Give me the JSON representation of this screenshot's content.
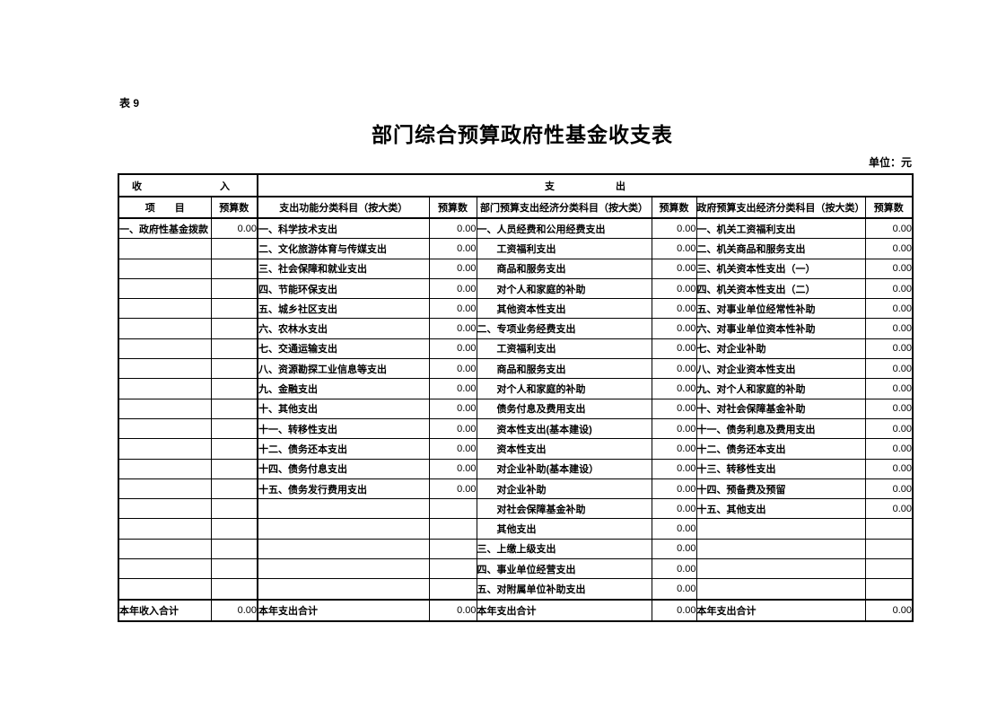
{
  "page": {
    "table_label": "表 9",
    "title": "部门综合预算政府性基金收支表",
    "unit_label": "单位：元"
  },
  "table": {
    "group_headers": {
      "income_left": "收",
      "income_right": "入",
      "expense_left": "支",
      "expense_right": "出"
    },
    "column_headers": [
      "项　　目",
      "预算数",
      "支出功能分类科目（按大类）",
      "预算数",
      "部门预算支出经济分类科目（按大类）",
      "预算数",
      "政府预算支出经济分类科目（按大类）",
      "预算数"
    ],
    "rows": [
      [
        "一、政府性基金拨款",
        "0.00",
        "一、科学技术支出",
        "0.00",
        "一、人员经费和公用经费支出",
        "0.00",
        "一、机关工资福利支出",
        "0.00"
      ],
      [
        "",
        "",
        "二、文化旅游体育与传媒支出",
        "0.00",
        "　　工资福利支出",
        "0.00",
        "二、机关商品和服务支出",
        "0.00"
      ],
      [
        "",
        "",
        "三、社会保障和就业支出",
        "0.00",
        "　　商品和服务支出",
        "0.00",
        "三、机关资本性支出（一）",
        "0.00"
      ],
      [
        "",
        "",
        "四、节能环保支出",
        "0.00",
        "　　对个人和家庭的补助",
        "0.00",
        "四、机关资本性支出（二）",
        "0.00"
      ],
      [
        "",
        "",
        "五、城乡社区支出",
        "0.00",
        "　　其他资本性支出",
        "0.00",
        "五、对事业单位经常性补助",
        "0.00"
      ],
      [
        "",
        "",
        "六、农林水支出",
        "0.00",
        "二、专项业务经费支出",
        "0.00",
        "六、对事业单位资本性补助",
        "0.00"
      ],
      [
        "",
        "",
        "七、交通运输支出",
        "0.00",
        "　　工资福利支出",
        "0.00",
        "七、对企业补助",
        "0.00"
      ],
      [
        "",
        "",
        "八、资源勘探工业信息等支出",
        "0.00",
        "　　商品和服务支出",
        "0.00",
        "八、对企业资本性支出",
        "0.00"
      ],
      [
        "",
        "",
        "九、金融支出",
        "0.00",
        "　　对个人和家庭的补助",
        "0.00",
        "九、对个人和家庭的补助",
        "0.00"
      ],
      [
        "",
        "",
        "十、其他支出",
        "0.00",
        "　　债务付息及费用支出",
        "0.00",
        "十、对社会保障基金补助",
        "0.00"
      ],
      [
        "",
        "",
        "十一、转移性支出",
        "0.00",
        "　　资本性支出(基本建设)",
        "0.00",
        "十一、债务利息及费用支出",
        "0.00"
      ],
      [
        "",
        "",
        "十二、债务还本支出",
        "0.00",
        "　　资本性支出",
        "0.00",
        "十二、债务还本支出",
        "0.00"
      ],
      [
        "",
        "",
        "十四、债务付息支出",
        "0.00",
        "　　对企业补助(基本建设）",
        "0.00",
        "十三、转移性支出",
        "0.00"
      ],
      [
        "",
        "",
        "十五、债务发行费用支出",
        "0.00",
        "　　对企业补助",
        "0.00",
        "十四、预备费及预留",
        "0.00"
      ],
      [
        "",
        "",
        "",
        "",
        "　　对社会保障基金补助",
        "0.00",
        "十五、其他支出",
        "0.00"
      ],
      [
        "",
        "",
        "",
        "",
        "　　其他支出",
        "0.00",
        "",
        ""
      ],
      [
        "",
        "",
        "",
        "",
        "三、上缴上级支出",
        "0.00",
        "",
        ""
      ],
      [
        "",
        "",
        "",
        "",
        "四、事业单位经营支出",
        "0.00",
        "",
        ""
      ],
      [
        "",
        "",
        "",
        "",
        "五、对附属单位补助支出",
        "0.00",
        "",
        ""
      ]
    ],
    "total_row": [
      "本年收入合计",
      "0.00",
      "本年支出合计",
      "0.00",
      "本年支出合计",
      "0.00",
      "本年支出合计",
      "0.00"
    ]
  }
}
